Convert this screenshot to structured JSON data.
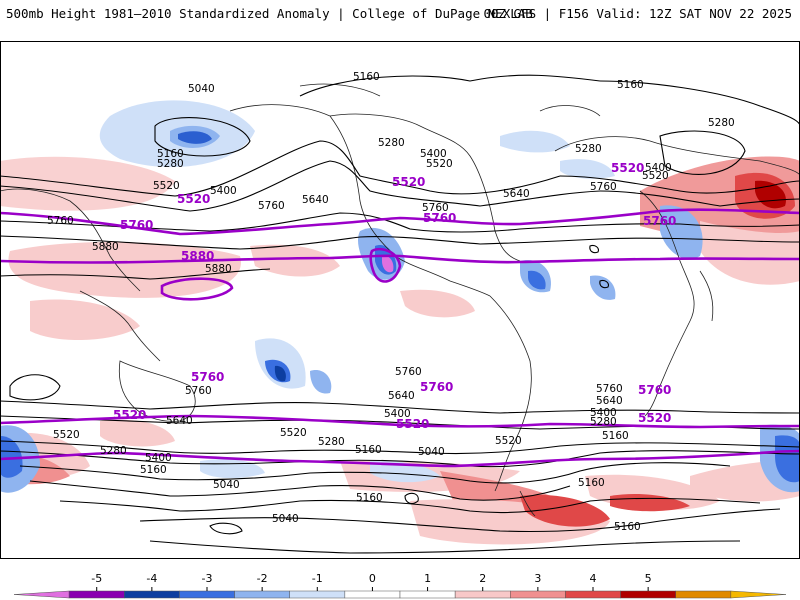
{
  "header": {
    "title_left": "500mb Height 1981–2010 Standardized Anomaly | College of DuPage NEXLAB",
    "title_right": "00Z GFS | F156 Valid: 12Z SAT NOV 22 2025"
  },
  "map": {
    "field": "500mb Height Standardized Anomaly",
    "contour_labels": {
      "l5040_np": "5040",
      "l5160_n": "5160",
      "l5160_ne": "5160",
      "l5280_ne": "5280",
      "l5280_eu": "5280",
      "l5520_eu": "5520",
      "l5400_eu": "5400",
      "l5160_pac": "5160",
      "l5280_pac": "5280",
      "l5520_pac": "5520",
      "l5400_pac": "5400",
      "l5640_pac": "5640",
      "l5760_pac": "5760",
      "l5880_asia": "5880",
      "l5880_pac": "5880",
      "l5280_na": "5280",
      "l5400_na": "5400",
      "l5520_na": "5520",
      "l5640_na": "5640",
      "l5760_na": "5760",
      "l5760_atl": "5760",
      "l5760_s_pac": "5760",
      "l5760_s_atl": "5760",
      "l5760_s_io": "5760",
      "l5760_s_w": "5760",
      "l5640_s_w": "5640",
      "l5400_s_w": "5400",
      "l5280_s_w": "5280",
      "l5160_s_w": "5160",
      "l5520_s_w": "5520",
      "l5040_s_w": "5040",
      "l5520_s_pac": "5520",
      "l5280_s_pac": "5280",
      "l5160_s_pac": "5160",
      "l5400_s_pac": "5400",
      "l5040_s_pac": "5040",
      "l5640_s_pac": "5640",
      "l5640_s_atl": "5640",
      "l5400_s_atl": "5400",
      "l5280_s_atl": "5280",
      "l5160_s_atl": "5160",
      "l5520_s_atl": "5520",
      "l5160_s_mid": "5160",
      "l5160_s_bot": "5160",
      "l5040_s_bot": "5040",
      "l5160_s_io": "5160"
    },
    "highlight_labels": {
      "p5520_w": "5520",
      "p5760_w": "5760",
      "p5880": "5880",
      "p5520_na": "5520",
      "p5760_na": "5760",
      "p5520_e": "5520",
      "p5760_e": "5760",
      "p5760_sw": "5760",
      "p5760_sm": "5760",
      "p5760_se": "5760",
      "p5520_sw": "5520",
      "p5520_sm": "5520",
      "p5520_se": "5520"
    }
  },
  "colorbar": {
    "ticks": [
      "-5",
      "-4",
      "-3",
      "-2",
      "-1",
      "0",
      "1",
      "2",
      "3",
      "4",
      "5"
    ],
    "colors": [
      "#e070e0",
      "#8a00b0",
      "#0d3ea0",
      "#3a6fe0",
      "#8fb4ef",
      "#cfe0f8",
      "#ffffff",
      "#ffffff",
      "#f8c8c8",
      "#f09090",
      "#e04848",
      "#b00000",
      "#e08a00",
      "#f5b800"
    ]
  }
}
